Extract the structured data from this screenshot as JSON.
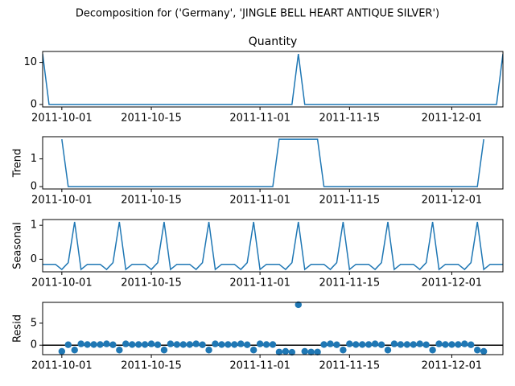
{
  "chart_data": {
    "type": "decomposition",
    "title": "Decomposition for ('Germany', 'JINGLE BELL HEART ANTIQUE SILVER')",
    "x": [
      "2011-09-28",
      "2011-09-29",
      "2011-09-30",
      "2011-10-01",
      "2011-10-02",
      "2011-10-03",
      "2011-10-04",
      "2011-10-05",
      "2011-10-06",
      "2011-10-07",
      "2011-10-08",
      "2011-10-09",
      "2011-10-10",
      "2011-10-11",
      "2011-10-12",
      "2011-10-13",
      "2011-10-14",
      "2011-10-15",
      "2011-10-16",
      "2011-10-17",
      "2011-10-18",
      "2011-10-19",
      "2011-10-20",
      "2011-10-21",
      "2011-10-22",
      "2011-10-23",
      "2011-10-24",
      "2011-10-25",
      "2011-10-26",
      "2011-10-27",
      "2011-10-28",
      "2011-10-29",
      "2011-10-30",
      "2011-10-31",
      "2011-11-01",
      "2011-11-02",
      "2011-11-03",
      "2011-11-04",
      "2011-11-05",
      "2011-11-06",
      "2011-11-07",
      "2011-11-08",
      "2011-11-09",
      "2011-11-10",
      "2011-11-11",
      "2011-11-12",
      "2011-11-13",
      "2011-11-14",
      "2011-11-15",
      "2011-11-16",
      "2011-11-17",
      "2011-11-18",
      "2011-11-19",
      "2011-11-20",
      "2011-11-21",
      "2011-11-22",
      "2011-11-23",
      "2011-11-24",
      "2011-11-25",
      "2011-11-26",
      "2011-11-27",
      "2011-11-28",
      "2011-11-29",
      "2011-11-30",
      "2011-12-01",
      "2011-12-02",
      "2011-12-03",
      "2011-12-04",
      "2011-12-05",
      "2011-12-06",
      "2011-12-07",
      "2011-12-08",
      "2011-12-09"
    ],
    "xlim": [
      "2011-09-28",
      "2011-12-09"
    ],
    "xticks": [
      "2011-10-01",
      "2011-10-15",
      "2011-11-01",
      "2011-11-15",
      "2011-12-01"
    ],
    "panels": [
      {
        "type": "line",
        "title": "Quantity",
        "color": "#1f77b4",
        "ylim": [
          -0.6,
          12.6
        ],
        "yticks": [
          0,
          10
        ],
        "values": [
          12,
          0,
          0,
          0,
          0,
          0,
          0,
          0,
          0,
          0,
          0,
          0,
          0,
          0,
          0,
          0,
          0,
          0,
          0,
          0,
          0,
          0,
          0,
          0,
          0,
          0,
          0,
          0,
          0,
          0,
          0,
          0,
          0,
          0,
          0,
          0,
          0,
          0,
          0,
          0,
          12,
          0,
          0,
          0,
          0,
          0,
          0,
          0,
          0,
          0,
          0,
          0,
          0,
          0,
          0,
          0,
          0,
          0,
          0,
          0,
          0,
          0,
          0,
          0,
          0,
          0,
          0,
          0,
          0,
          0,
          0,
          0,
          12
        ]
      },
      {
        "type": "line",
        "ylabel": "Trend",
        "color": "#1f77b4",
        "ylim": [
          -0.086,
          1.8
        ],
        "yticks": [
          0,
          1
        ],
        "values": [
          null,
          null,
          null,
          1.71,
          0,
          0,
          0,
          0,
          0,
          0,
          0,
          0,
          0,
          0,
          0,
          0,
          0,
          0,
          0,
          0,
          0,
          0,
          0,
          0,
          0,
          0,
          0,
          0,
          0,
          0,
          0,
          0,
          0,
          0,
          0,
          0,
          0,
          1.71,
          1.71,
          1.71,
          1.71,
          1.71,
          1.71,
          1.71,
          0,
          0,
          0,
          0,
          0,
          0,
          0,
          0,
          0,
          0,
          0,
          0,
          0,
          0,
          0,
          0,
          0,
          0,
          0,
          0,
          0,
          0,
          0,
          0,
          0,
          1.71,
          null,
          null,
          null
        ]
      },
      {
        "type": "line",
        "ylabel": "Seasonal",
        "color": "#1f77b4",
        "ylim": [
          -0.37,
          1.17
        ],
        "yticks": [
          0,
          1
        ],
        "values": [
          -0.15,
          -0.15,
          -0.15,
          -0.3,
          -0.1,
          1.1,
          -0.3,
          -0.15,
          -0.15,
          -0.15,
          -0.3,
          -0.1,
          1.1,
          -0.3,
          -0.15,
          -0.15,
          -0.15,
          -0.3,
          -0.1,
          1.1,
          -0.3,
          -0.15,
          -0.15,
          -0.15,
          -0.3,
          -0.1,
          1.1,
          -0.3,
          -0.15,
          -0.15,
          -0.15,
          -0.3,
          -0.1,
          1.1,
          -0.3,
          -0.15,
          -0.15,
          -0.15,
          -0.3,
          -0.1,
          1.1,
          -0.3,
          -0.15,
          -0.15,
          -0.15,
          -0.3,
          -0.1,
          1.1,
          -0.3,
          -0.15,
          -0.15,
          -0.15,
          -0.3,
          -0.1,
          1.1,
          -0.3,
          -0.15,
          -0.15,
          -0.15,
          -0.3,
          -0.1,
          1.1,
          -0.3,
          -0.15,
          -0.15,
          -0.15,
          -0.3,
          -0.1,
          1.1,
          -0.3,
          -0.15,
          -0.15,
          -0.15
        ]
      },
      {
        "type": "scatter",
        "ylabel": "Resid",
        "color": "#1f77b4",
        "ylim": [
          -2.15,
          9.73
        ],
        "yticks": [
          0,
          5
        ],
        "zero_line": 0,
        "values": [
          null,
          null,
          null,
          -1.41,
          0.1,
          -1.1,
          0.3,
          0.15,
          0.15,
          0.15,
          0.3,
          0.1,
          -1.1,
          0.3,
          0.15,
          0.15,
          0.15,
          0.3,
          0.1,
          -1.1,
          0.3,
          0.15,
          0.15,
          0.15,
          0.3,
          0.1,
          -1.1,
          0.3,
          0.15,
          0.15,
          0.15,
          0.3,
          0.1,
          -1.1,
          0.3,
          0.15,
          0.15,
          -1.56,
          -1.41,
          -1.61,
          9.19,
          -1.41,
          -1.56,
          -1.56,
          0.15,
          0.3,
          0.1,
          -1.1,
          0.3,
          0.15,
          0.15,
          0.15,
          0.3,
          0.1,
          -1.1,
          0.3,
          0.15,
          0.15,
          0.15,
          0.3,
          0.1,
          -1.1,
          0.3,
          0.15,
          0.15,
          0.15,
          0.3,
          0.1,
          -1.1,
          -1.41,
          null,
          null,
          null
        ]
      }
    ]
  }
}
